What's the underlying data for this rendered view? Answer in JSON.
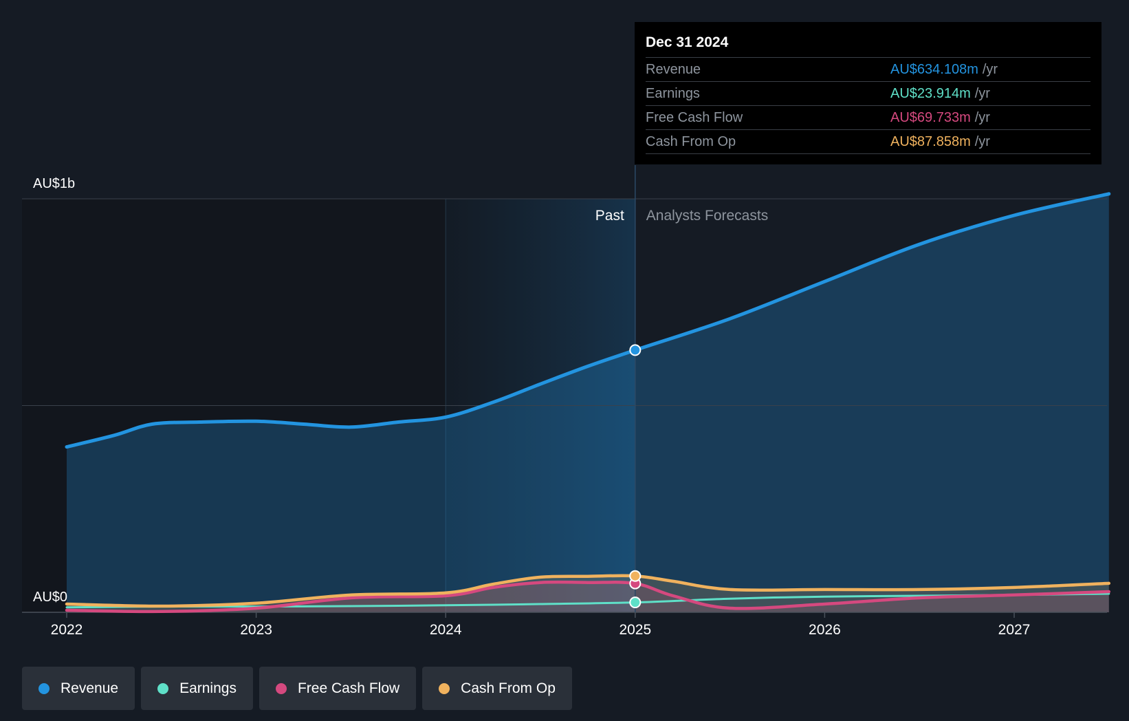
{
  "chart_data": {
    "type": "line",
    "x_ticks": [
      "2022",
      "2023",
      "2024",
      "2025",
      "2026",
      "2027"
    ],
    "y_labels": {
      "top": "AU$1b",
      "bottom": "AU$0"
    },
    "y_range_millions": [
      0,
      1000
    ],
    "x_range_years": [
      2022.0,
      2027.5
    ],
    "past_label": "Past",
    "forecast_label": "Analysts Forecasts",
    "divider_year": 2025.0,
    "past_shade_start_year": 2024.0,
    "series": [
      {
        "name": "Revenue",
        "color": "#2394e0",
        "area": true,
        "points": [
          [
            2022.0,
            400
          ],
          [
            2022.25,
            428
          ],
          [
            2022.45,
            455
          ],
          [
            2022.7,
            460
          ],
          [
            2023.0,
            462
          ],
          [
            2023.25,
            455
          ],
          [
            2023.5,
            448
          ],
          [
            2023.75,
            460
          ],
          [
            2024.0,
            472
          ],
          [
            2024.25,
            508
          ],
          [
            2024.5,
            552
          ],
          [
            2024.75,
            595
          ],
          [
            2025.0,
            634.108
          ],
          [
            2025.5,
            710
          ],
          [
            2026.0,
            800
          ],
          [
            2026.5,
            890
          ],
          [
            2027.0,
            960
          ],
          [
            2027.5,
            1012
          ]
        ]
      },
      {
        "name": "Earnings",
        "color": "#5fe0c8",
        "area": false,
        "points": [
          [
            2022.0,
            12
          ],
          [
            2022.5,
            14
          ],
          [
            2023.0,
            14
          ],
          [
            2023.5,
            15
          ],
          [
            2024.0,
            17
          ],
          [
            2024.5,
            20
          ],
          [
            2025.0,
            23.914
          ],
          [
            2025.5,
            33
          ],
          [
            2026.0,
            38
          ],
          [
            2026.5,
            40
          ],
          [
            2027.0,
            42
          ],
          [
            2027.5,
            45
          ]
        ]
      },
      {
        "name": "Free Cash Flow",
        "color": "#d5497f",
        "area": true,
        "points": [
          [
            2022.0,
            5
          ],
          [
            2022.5,
            2
          ],
          [
            2023.0,
            10
          ],
          [
            2023.5,
            35
          ],
          [
            2024.0,
            40
          ],
          [
            2024.25,
            60
          ],
          [
            2024.5,
            72
          ],
          [
            2024.75,
            72
          ],
          [
            2025.0,
            69.733
          ],
          [
            2025.2,
            40
          ],
          [
            2025.5,
            10
          ],
          [
            2026.0,
            20
          ],
          [
            2026.5,
            35
          ],
          [
            2027.0,
            42
          ],
          [
            2027.5,
            50
          ]
        ]
      },
      {
        "name": "Cash From Op",
        "color": "#f0b25e",
        "area": true,
        "points": [
          [
            2022.0,
            20
          ],
          [
            2022.5,
            15
          ],
          [
            2023.0,
            22
          ],
          [
            2023.5,
            42
          ],
          [
            2024.0,
            47
          ],
          [
            2024.25,
            68
          ],
          [
            2024.5,
            85
          ],
          [
            2024.75,
            87
          ],
          [
            2025.0,
            87.858
          ],
          [
            2025.2,
            75
          ],
          [
            2025.5,
            55
          ],
          [
            2026.0,
            55
          ],
          [
            2026.5,
            55
          ],
          [
            2027.0,
            60
          ],
          [
            2027.5,
            70
          ]
        ]
      }
    ]
  },
  "tooltip": {
    "date": "Dec 31 2024",
    "unit": "/yr",
    "rows": [
      {
        "label": "Revenue",
        "value": "AU$634.108m",
        "color": "#2394e0"
      },
      {
        "label": "Earnings",
        "value": "AU$23.914m",
        "color": "#5fe0c8"
      },
      {
        "label": "Free Cash Flow",
        "value": "AU$69.733m",
        "color": "#d5497f"
      },
      {
        "label": "Cash From Op",
        "value": "AU$87.858m",
        "color": "#f0b25e"
      }
    ]
  },
  "legend": [
    {
      "label": "Revenue",
      "color": "#2394e0"
    },
    {
      "label": "Earnings",
      "color": "#5fe0c8"
    },
    {
      "label": "Free Cash Flow",
      "color": "#d5497f"
    },
    {
      "label": "Cash From Op",
      "color": "#f0b25e"
    }
  ]
}
